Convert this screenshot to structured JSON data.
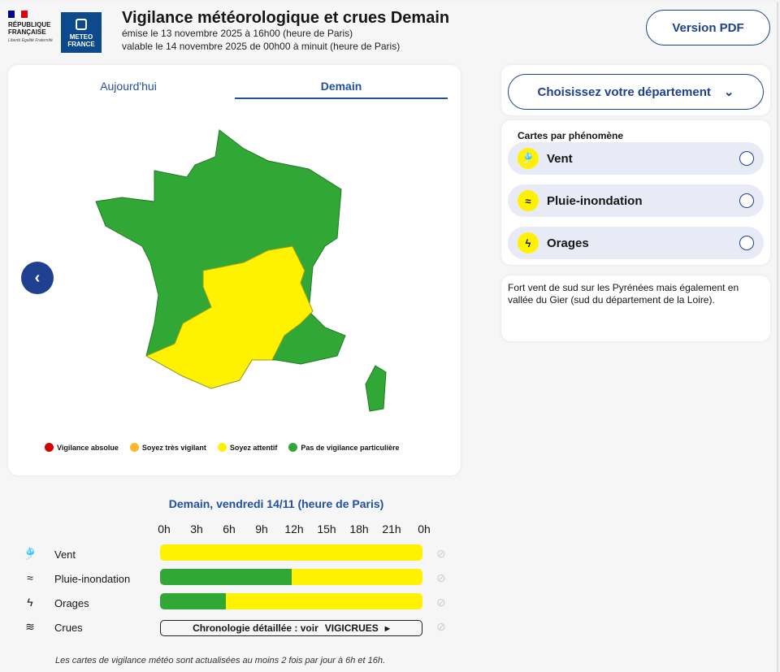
{
  "header": {
    "rf_line1": "RÉPUBLIQUE",
    "rf_line2": "FRANÇAISE",
    "rf_motto": "Liberté Égalité Fraternité",
    "meteo_line1": "METEO",
    "meteo_line2": "FRANCE",
    "title": "Vigilance météorologique et crues Demain",
    "emission": "émise le 13 novembre 2025 à 16h00 (heure de Paris)",
    "validity": "valable le 14 novembre 2025 de 00h00 à minuit (heure de Paris)",
    "pdf_button": "Version PDF"
  },
  "tabs": [
    {
      "label": "Aujourd'hui"
    },
    {
      "label": "Demain",
      "active": true
    }
  ],
  "legend": [
    {
      "label": "Vigilance absolue",
      "color": "#d40000"
    },
    {
      "label": "Soyez très vigilant",
      "color": "#ffb82b"
    },
    {
      "label": "Soyez attentif",
      "color": "#fff200"
    },
    {
      "label": "Pas de vigilance particulière",
      "color": "#31a836"
    }
  ],
  "sidebar": {
    "dept_button": "Choisissez votre département",
    "phenomena_title": "Cartes par phénomène",
    "phenomena": [
      {
        "label": "Vent",
        "icon": "wind-sock-icon"
      },
      {
        "label": "Pluie-inondation",
        "icon": "rain-flood-icon"
      },
      {
        "label": "Orages",
        "icon": "lightning-icon"
      }
    ],
    "description": "Fort vent de sud sur les Pyrénées mais également en vallée du Gier (sud du département de la Loire)."
  },
  "timeline": {
    "title": "Demain, vendredi 14/11 (heure de Paris)",
    "hours": [
      "0h",
      "3h",
      "6h",
      "9h",
      "12h",
      "15h",
      "18h",
      "21h",
      "0h"
    ],
    "rows": [
      {
        "label": "Vent",
        "segments": [
          {
            "from": 0,
            "to": 24,
            "color": "#fff200"
          }
        ]
      },
      {
        "label": "Pluie-inondation",
        "segments": [
          {
            "from": 0,
            "to": 12,
            "color": "#31a836"
          },
          {
            "from": 12,
            "to": 24,
            "color": "#fff200"
          }
        ]
      },
      {
        "label": "Orages",
        "segments": [
          {
            "from": 0,
            "to": 6,
            "color": "#31a836"
          },
          {
            "from": 6,
            "to": 24,
            "color": "#fff200"
          }
        ]
      }
    ],
    "crues_label": "Crues",
    "crues_link": "Chronologie détaillée : voir",
    "crues_brand": "VIGICRUES"
  },
  "footer": "Les cartes de vigilance météo sont actualisées au moins 2 fois par jour à 6h et 16h."
}
